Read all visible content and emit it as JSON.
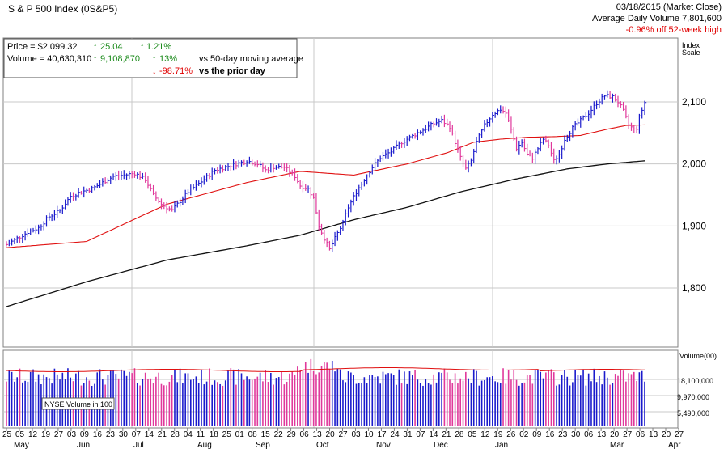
{
  "header": {
    "title": "S & P 500 Index    (0S&P5)",
    "date": "03/18/2015 (Market Close)",
    "avg_volume": "Average Daily Volume 7,801,600",
    "off_high": "-0.96% off 52-week high"
  },
  "info": {
    "price_label": "Price = $2,099.32",
    "price_change": "25.04",
    "price_pct": "1.21%",
    "volume_label": "Volume = 40,630,310",
    "volume_change": "9,108,870",
    "volume_pct": "13%",
    "vs_50day": "vs 50-day moving average",
    "prior_pct": "-98.71%",
    "vs_prior": "vs the prior day"
  },
  "labels": {
    "index_scale": [
      "Index",
      "Scale"
    ],
    "volume_axis": "Volume(00)",
    "nyse_volume": "NYSE Volume in 100"
  },
  "colors": {
    "up": "#1a1acc",
    "down": "#e0389b",
    "ma50": "#e01010",
    "ma200": "#111111",
    "grid": "#c8c8c8"
  },
  "chart_data": {
    "type": "line",
    "title": "S & P 500 Index",
    "price_axis": {
      "ticks": [
        "2,100",
        "2,000",
        "1,900",
        "1,800"
      ],
      "values": [
        2100,
        2000,
        1900,
        1800
      ],
      "ylim": [
        1730,
        2160
      ]
    },
    "volume_axis": {
      "ticks": [
        "18,100,000",
        "9,970,000",
        "5,490,000"
      ]
    },
    "x_day_ticks": [
      "25",
      "05",
      "12",
      "19",
      "27",
      "03",
      "09",
      "16",
      "23",
      "30",
      "07",
      "14",
      "21",
      "28",
      "04",
      "11",
      "18",
      "25",
      "01",
      "08",
      "15",
      "22",
      "29",
      "06",
      "13",
      "20",
      "27",
      "03",
      "10",
      "17",
      "24",
      "31",
      "07",
      "14",
      "21",
      "28",
      "05",
      "12",
      "19",
      "26",
      "02",
      "09",
      "16",
      "23",
      "30",
      "06",
      "13",
      "20",
      "27",
      "06",
      "13",
      "20",
      "27"
    ],
    "x_month_ticks": [
      "May",
      "Jun",
      "Jul",
      "Aug",
      "Sep",
      "Oct",
      "Nov",
      "Dec",
      "Jan",
      "Mar",
      "Apr"
    ],
    "price_keypoints": [
      [
        0,
        1870
      ],
      [
        4,
        1880
      ],
      [
        8,
        1890
      ],
      [
        12,
        1897
      ],
      [
        16,
        1915
      ],
      [
        20,
        1925
      ],
      [
        24,
        1948
      ],
      [
        28,
        1955
      ],
      [
        32,
        1960
      ],
      [
        36,
        1970
      ],
      [
        40,
        1980
      ],
      [
        44,
        1982
      ],
      [
        48,
        1985
      ],
      [
        52,
        1975
      ],
      [
        55,
        1950
      ],
      [
        58,
        1935
      ],
      [
        60,
        1930
      ],
      [
        62,
        1925
      ],
      [
        65,
        1940
      ],
      [
        68,
        1955
      ],
      [
        71,
        1965
      ],
      [
        74,
        1975
      ],
      [
        78,
        1990
      ],
      [
        82,
        1995
      ],
      [
        86,
        2000
      ],
      [
        90,
        2005
      ],
      [
        94,
        2000
      ],
      [
        97,
        1990
      ],
      [
        100,
        1995
      ],
      [
        104,
        1995
      ],
      [
        108,
        1980
      ],
      [
        110,
        1965
      ],
      [
        113,
        1960
      ],
      [
        115,
        1945
      ],
      [
        117,
        1900
      ],
      [
        119,
        1880
      ],
      [
        121,
        1862
      ],
      [
        123,
        1880
      ],
      [
        126,
        1905
      ],
      [
        128,
        1930
      ],
      [
        131,
        1955
      ],
      [
        134,
        1975
      ],
      [
        137,
        1995
      ],
      [
        140,
        2010
      ],
      [
        144,
        2020
      ],
      [
        148,
        2035
      ],
      [
        152,
        2045
      ],
      [
        156,
        2055
      ],
      [
        160,
        2065
      ],
      [
        163,
        2070
      ],
      [
        166,
        2060
      ],
      [
        168,
        2035
      ],
      [
        170,
        2010
      ],
      [
        172,
        1992
      ],
      [
        174,
        2005
      ],
      [
        176,
        2035
      ],
      [
        179,
        2062
      ],
      [
        182,
        2080
      ],
      [
        185,
        2088
      ],
      [
        187,
        2082
      ],
      [
        189,
        2055
      ],
      [
        191,
        2025
      ],
      [
        193,
        2035
      ],
      [
        195,
        2015
      ],
      [
        197,
        2010
      ],
      [
        199,
        2025
      ],
      [
        201,
        2040
      ],
      [
        203,
        2030
      ],
      [
        205,
        2005
      ],
      [
        207,
        2015
      ],
      [
        209,
        2040
      ],
      [
        212,
        2058
      ],
      [
        215,
        2070
      ],
      [
        218,
        2082
      ],
      [
        221,
        2098
      ],
      [
        224,
        2110
      ],
      [
        227,
        2108
      ],
      [
        229,
        2100
      ],
      [
        231,
        2085
      ],
      [
        233,
        2063
      ],
      [
        235,
        2055
      ],
      [
        236,
        2058
      ],
      [
        237,
        2075
      ],
      [
        239,
        2099
      ]
    ],
    "ma50_keypoints": [
      [
        0,
        1865
      ],
      [
        30,
        1875
      ],
      [
        60,
        1935
      ],
      [
        90,
        1970
      ],
      [
        110,
        1988
      ],
      [
        130,
        1982
      ],
      [
        150,
        2000
      ],
      [
        165,
        2018
      ],
      [
        175,
        2035
      ],
      [
        185,
        2040
      ],
      [
        195,
        2043
      ],
      [
        205,
        2044
      ],
      [
        215,
        2046
      ],
      [
        225,
        2056
      ],
      [
        232,
        2062
      ],
      [
        239,
        2063
      ]
    ],
    "ma200_keypoints": [
      [
        0,
        1770
      ],
      [
        30,
        1810
      ],
      [
        60,
        1845
      ],
      [
        90,
        1868
      ],
      [
        110,
        1885
      ],
      [
        130,
        1910
      ],
      [
        150,
        1930
      ],
      [
        170,
        1955
      ],
      [
        190,
        1975
      ],
      [
        210,
        1992
      ],
      [
        225,
        2000
      ],
      [
        239,
        2005
      ]
    ]
  }
}
